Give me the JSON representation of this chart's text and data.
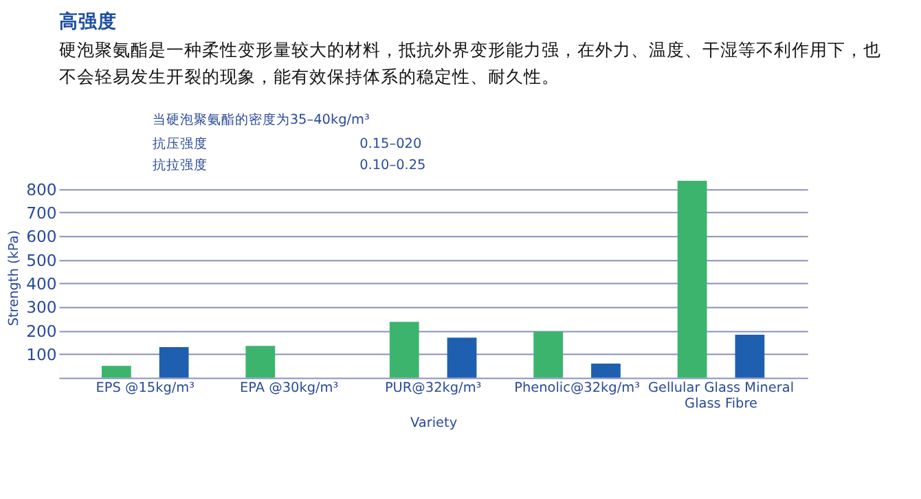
{
  "chart_data": {
    "type": "bar",
    "title": "高强度",
    "subtitle": "硬泡聚氨酯是一种柔性变形量较大的材料，抵抗外界变形能力强，在外力、温度、干湿等不利作用下，也不会轻易发生开裂的现象，能有效保持体系的稳定性、耐久性。",
    "annotations": [
      "当硬泡聚氨酯的密度为35–40kg/m³",
      "抗压强度",
      "0.15–020",
      "抗拉强度",
      "0.10–0.25"
    ],
    "categories": [
      "EPS @15kg/m³",
      "EPA @30kg/m³",
      "PUR@32kg/m³",
      "Phenolic@32kg/m³",
      "Gellular Glass Mineral Glass Fibre"
    ],
    "series": [
      {
        "color": "#3cb46e",
        "values": [
          50,
          135,
          237,
          196,
          835
        ]
      },
      {
        "color": "#1f5fb0",
        "values": [
          130,
          null,
          170,
          60,
          182
        ]
      }
    ],
    "ylabel": "Strength (kPa)",
    "xlabel": "Variety",
    "ylim": [
      0,
      850
    ],
    "yticks": [
      100,
      200,
      300,
      400,
      500,
      600,
      700,
      800
    ],
    "grid": "y"
  }
}
